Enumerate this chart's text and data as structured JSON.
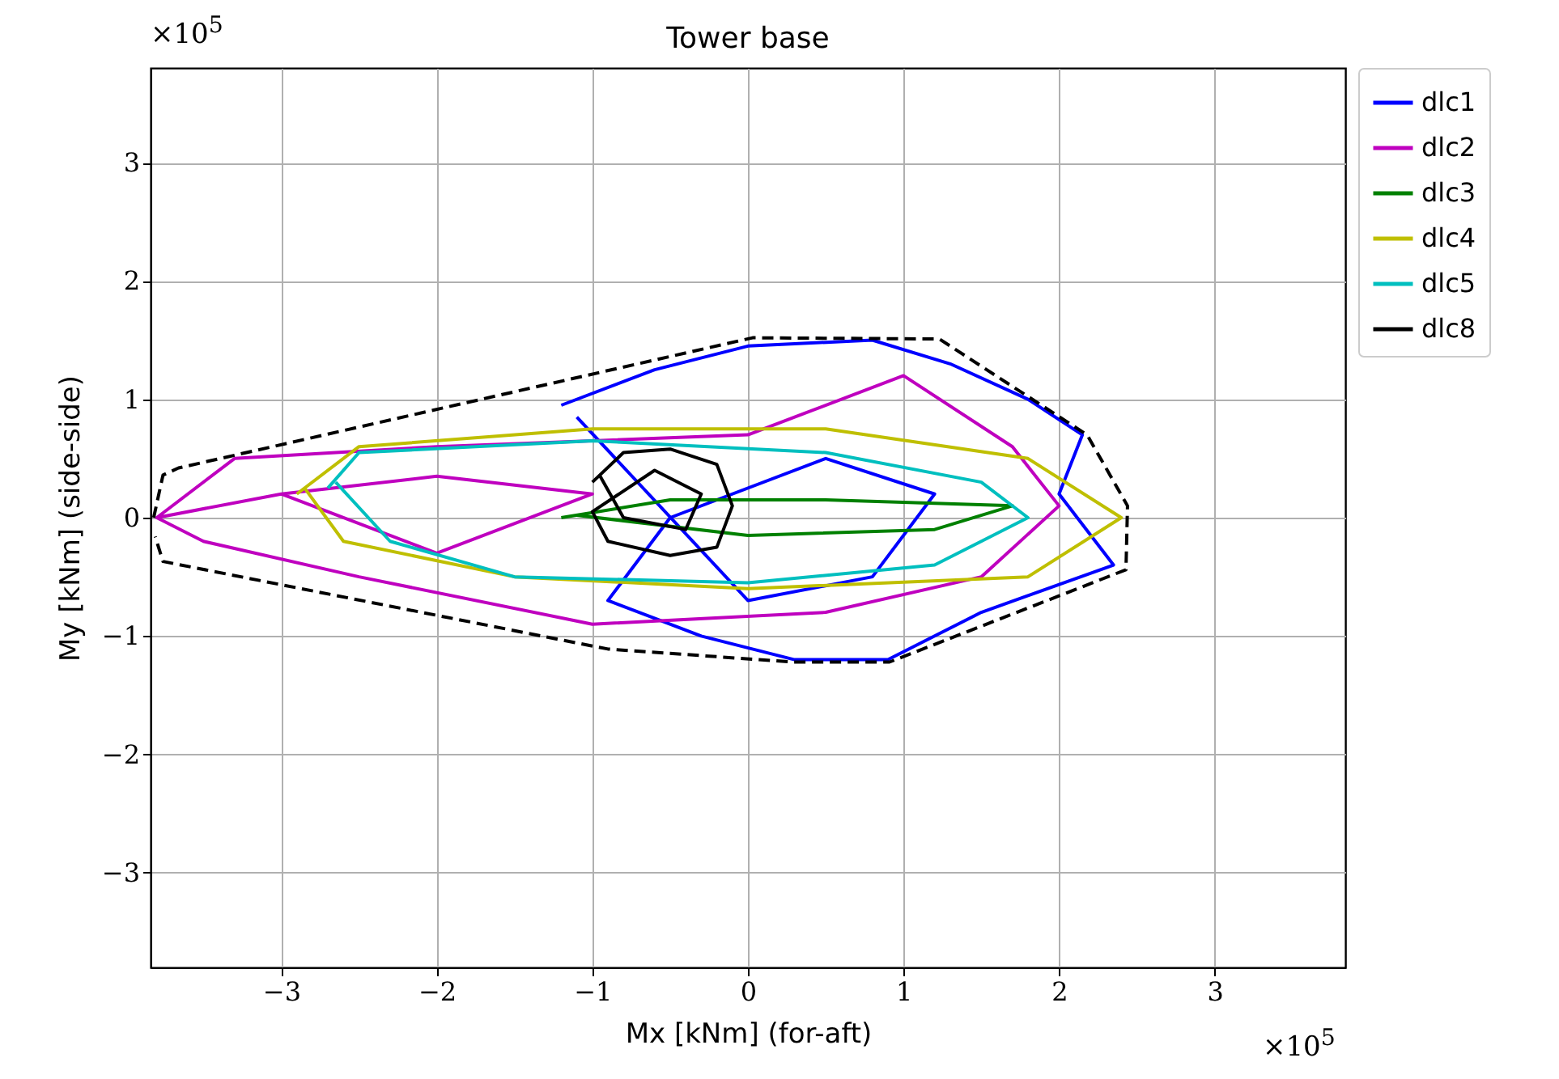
{
  "chart_data": {
    "type": "line",
    "title": "Tower base",
    "xlabel": "Mx [kNm] (for-aft)",
    "ylabel": "My [kNm] (side-side)",
    "annotations": [
      "×10$^{5}$",
      "×10$^{5}$"
    ],
    "xlim": [
      -3.84,
      3.84
    ],
    "ylim": [
      -3.8,
      3.8
    ],
    "xticks": [
      -3,
      -2,
      -1,
      0,
      1,
      2,
      3
    ],
    "yticks": [
      -3,
      -2,
      -1,
      0,
      1,
      2,
      3
    ],
    "grid": true,
    "legend": "right",
    "line_style": "solid",
    "series": [
      {
        "name": "dlc1",
        "color": "#0000ff",
        "x": [
          -1.2,
          -0.6,
          0,
          0.8,
          1.3,
          1.8,
          2.15,
          2.0,
          2.35,
          1.5,
          0.9,
          0.3,
          -0.3,
          -0.9,
          -0.5,
          0.5,
          1.2,
          0.8,
          0,
          -1.1
        ],
        "values": [
          0.95,
          1.25,
          1.45,
          1.5,
          1.3,
          1.0,
          0.7,
          0.2,
          -0.4,
          -0.8,
          -1.2,
          -1.2,
          -1.0,
          -0.7,
          0,
          0.5,
          0.2,
          -0.5,
          -0.7,
          0.85
        ]
      },
      {
        "name": "dlc2",
        "color": "#bf00bf",
        "x": [
          -3.8,
          -3.3,
          -2.0,
          0,
          1.0,
          1.7,
          2.0,
          1.5,
          0.5,
          -1.0,
          -2.5,
          -3.5,
          -3.8,
          -3.0,
          -2.0,
          -1.0,
          -2.0,
          -3.0
        ],
        "values": [
          0,
          0.5,
          0.6,
          0.7,
          1.2,
          0.6,
          0.1,
          -0.5,
          -0.8,
          -0.9,
          -0.5,
          -0.2,
          0,
          0.2,
          0.35,
          0.2,
          -0.3,
          0.2
        ]
      },
      {
        "name": "dlc3",
        "color": "#008000",
        "x": [
          -1.2,
          -0.5,
          0.5,
          1.7,
          1.2,
          0,
          -1.1
        ],
        "values": [
          0,
          0.15,
          0.15,
          0.1,
          -0.1,
          -0.15,
          0.02
        ]
      },
      {
        "name": "dlc4",
        "color": "#bfbf00",
        "x": [
          -2.9,
          -2.5,
          -1,
          0.5,
          1.8,
          2.4,
          1.8,
          0,
          -1.5,
          -2.6,
          -2.85
        ],
        "values": [
          0.2,
          0.6,
          0.75,
          0.75,
          0.5,
          0,
          -0.5,
          -0.6,
          -0.5,
          -0.2,
          0.25
        ]
      },
      {
        "name": "dlc5",
        "color": "#00bfbf",
        "x": [
          -2.7,
          -2.5,
          -1,
          0.5,
          1.5,
          1.8,
          1.2,
          0,
          -1.5,
          -2.3,
          -2.65
        ],
        "values": [
          0.25,
          0.55,
          0.65,
          0.55,
          0.3,
          0,
          -0.4,
          -0.55,
          -0.5,
          -0.2,
          0.3
        ]
      },
      {
        "name": "dlc8",
        "color": "#000000",
        "x": [
          -1.0,
          -0.8,
          -0.5,
          -0.2,
          -0.1,
          -0.2,
          -0.5,
          -0.9,
          -1.0,
          -0.6,
          -0.3,
          -0.4,
          -0.8,
          -0.95
        ],
        "values": [
          0.3,
          0.55,
          0.58,
          0.45,
          0.1,
          -0.25,
          -0.32,
          -0.2,
          0.05,
          0.4,
          0.2,
          -0.1,
          0,
          0.35
        ]
      },
      {
        "color": "#000000",
        "line_style": "dashed",
        "x": [
          -3.82,
          -3.76,
          -3.66,
          0.03,
          1.23,
          2.18,
          2.44,
          2.43,
          0.91,
          0.29,
          -0.9,
          -3.76,
          -3.81
        ],
        "values": [
          0,
          0.36,
          0.42,
          1.52,
          1.51,
          0.7,
          0.1,
          -0.44,
          -1.22,
          -1.22,
          -1.11,
          -0.37,
          -0.16
        ]
      }
    ]
  }
}
